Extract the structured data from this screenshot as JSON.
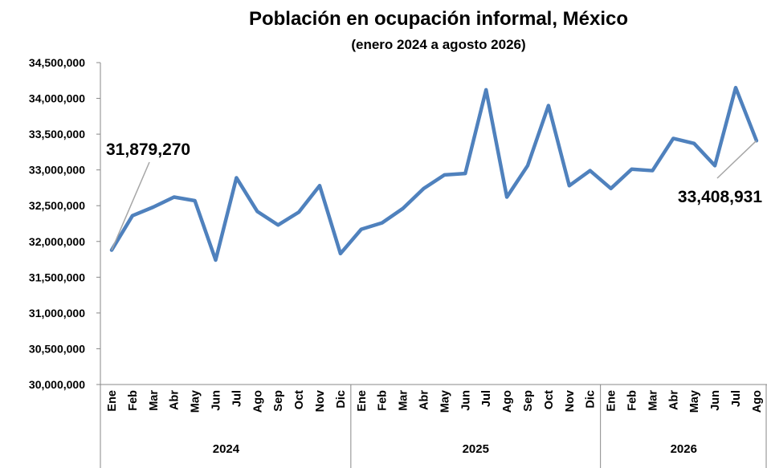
{
  "chart_data": {
    "type": "line",
    "title": "Población en ocupación informal, México",
    "subtitle": "(enero 2024 a agosto 2026)",
    "ylim": [
      30000000,
      34500000
    ],
    "y_ticks": [
      "34,500,000",
      "34,000,000",
      "33,500,000",
      "33,000,000",
      "32,500,000",
      "32,000,000",
      "31,500,000",
      "31,000,000",
      "30,500,000",
      "30,000,000"
    ],
    "y_tick_values": [
      34500000,
      34000000,
      33500000,
      33000000,
      32500000,
      32000000,
      31500000,
      31000000,
      30500000,
      30000000
    ],
    "categories": [
      "Ene",
      "Feb",
      "Mar",
      "Abr",
      "May",
      "Jun",
      "Jul",
      "Ago",
      "Sep",
      "Oct",
      "Nov",
      "Dic",
      "Ene",
      "Feb",
      "Mar",
      "Abr",
      "May",
      "Jun",
      "Jul",
      "Ago",
      "Sep",
      "Oct",
      "Nov",
      "Dic",
      "Ene",
      "Feb",
      "Mar",
      "Abr",
      "May",
      "Jun",
      "Jul",
      "Ago"
    ],
    "year_groups": [
      {
        "label": "2024",
        "count": 12
      },
      {
        "label": "2025",
        "count": 12
      },
      {
        "label": "2026",
        "count": 8
      }
    ],
    "series": [
      {
        "values": [
          31879270,
          32360000,
          32480000,
          32620000,
          32570000,
          31740000,
          32890000,
          32420000,
          32230000,
          32410000,
          32780000,
          31830000,
          32170000,
          32260000,
          32460000,
          32740000,
          32930000,
          32950000,
          34120000,
          32620000,
          33060000,
          33900000,
          32780000,
          32990000,
          32740000,
          33010000,
          32990000,
          33440000,
          33370000,
          33060000,
          34150000,
          33408931
        ],
        "color": "#4F81BD"
      }
    ],
    "annotations": [
      {
        "text": "31,879,270",
        "point_index": 0
      },
      {
        "text": "33,408,931",
        "point_index": 31
      }
    ],
    "grid": false,
    "legend": "none"
  }
}
